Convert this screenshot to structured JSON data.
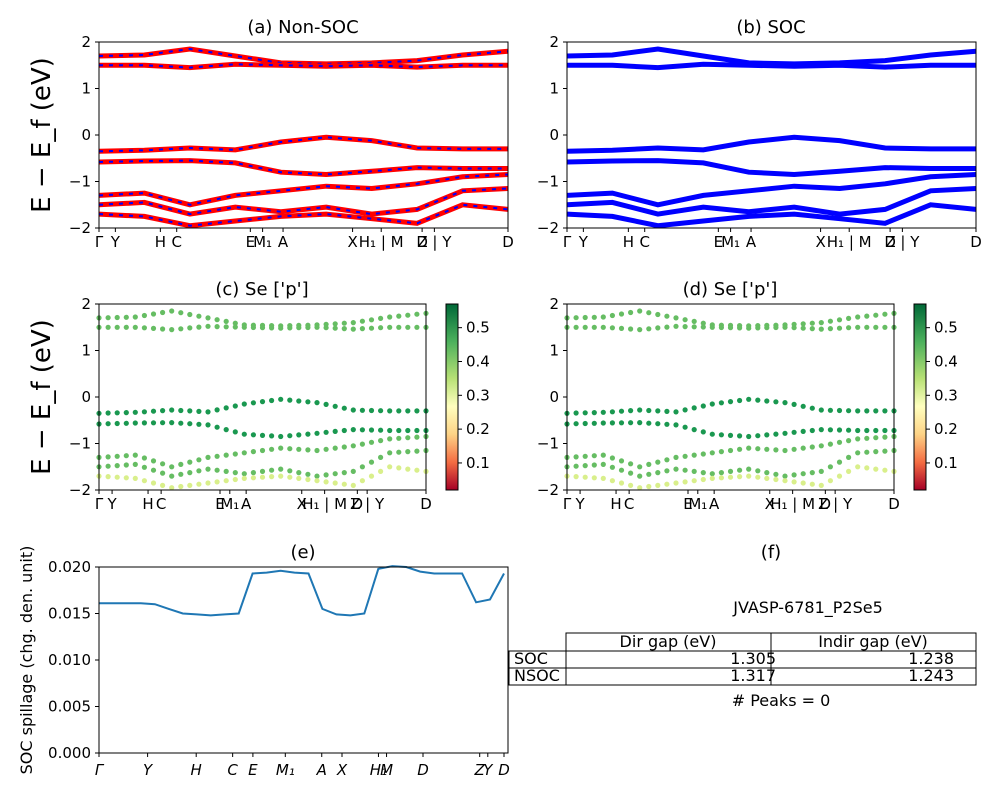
{
  "colors": {
    "nonsoc_red": "#ff0000",
    "blue": "#0000ff",
    "spill_line": "#1f77b4"
  },
  "charts": {
    "a": {
      "title": "(a) Non-SOC",
      "ylabel": "E − E_f (eV)"
    },
    "b": {
      "title": "(b) SOC"
    },
    "c": {
      "title": "(c)  Se ['p']",
      "ylabel": "E − E_f (eV)"
    },
    "d": {
      "title": "(d) Se ['p']"
    },
    "e": {
      "title": "(e)",
      "ylabel": "SOC spillage (chg. den. unit)"
    },
    "f": {
      "title": "(f)",
      "material": "JVASP-6781_P2Se5",
      "peaks": "# Peaks = 0"
    }
  },
  "band_ticks": [
    "Γ",
    "Y",
    "H",
    "C",
    "E",
    "M₁",
    "A",
    "X",
    "H₁ | M",
    "D",
    "Z | Y",
    "D"
  ],
  "spill_ticks": [
    "Γ",
    "Y",
    "H",
    "C",
    "E",
    "M₁",
    "A",
    "X",
    "H₁",
    "M",
    "D",
    "Z",
    "Y",
    "D"
  ],
  "colorbar_ticks": [
    "0.1",
    "0.2",
    "0.3",
    "0.4",
    "0.5"
  ],
  "table": {
    "header": [
      "Dir gap (eV)",
      "Indir gap (eV)"
    ],
    "rows": [
      {
        "label": "SOC",
        "dir": "1.305",
        "indir": "1.238"
      },
      {
        "label": "NSOC",
        "dir": "1.317",
        "indir": "1.243"
      }
    ]
  },
  "chart_data": [
    {
      "type": "line",
      "panel": "a",
      "title": "(a) Non-SOC",
      "ylabel": "E − E_f (eV)",
      "ylim": [
        -2,
        2
      ],
      "yticks": [
        "2",
        "1",
        "0",
        "−1",
        "−2"
      ],
      "series": [
        {
          "name": "",
          "values": [
            1.7,
            1.72,
            1.85,
            1.7,
            1.55,
            1.53,
            1.55,
            1.6,
            1.72,
            1.8
          ]
        },
        {
          "name": "",
          "values": [
            1.5,
            1.5,
            1.45,
            1.52,
            1.5,
            1.48,
            1.5,
            1.46,
            1.5,
            1.5
          ]
        },
        {
          "name": "",
          "values": [
            -0.35,
            -0.33,
            -0.28,
            -0.32,
            -0.15,
            -0.05,
            -0.12,
            -0.28,
            -0.3,
            -0.3
          ]
        },
        {
          "name": "",
          "values": [
            -0.58,
            -0.56,
            -0.55,
            -0.6,
            -0.8,
            -0.85,
            -0.78,
            -0.7,
            -0.72,
            -0.72
          ]
        }
      ]
    },
    {
      "type": "line",
      "panel": "b",
      "title": "(b) SOC",
      "ylim": [
        -2,
        2
      ]
    },
    {
      "type": "scatter",
      "panel": "c",
      "title": "(c)  Se ['p']",
      "ylim": [
        -2,
        2
      ],
      "colorbar": [
        0.02,
        0.57
      ]
    },
    {
      "type": "scatter",
      "panel": "d",
      "title": "(d) Se ['p']",
      "ylim": [
        -2,
        2
      ],
      "colorbar": [
        0.02,
        0.57
      ]
    },
    {
      "type": "line",
      "panel": "e",
      "title": "(e)",
      "ylabel": "SOC spillage (chg. den. unit)",
      "ylim": [
        0,
        0.02
      ],
      "yticks": [
        "0.020",
        "0.015",
        "0.010",
        "0.005",
        "0.000"
      ],
      "x": [
        0,
        1,
        2,
        3,
        4,
        5,
        6,
        7,
        8,
        9,
        10,
        11,
        12,
        13,
        14,
        15,
        16,
        17,
        18,
        19,
        20,
        21,
        22,
        23,
        24,
        25,
        26,
        27,
        28,
        29
      ],
      "values": [
        0.0161,
        0.0161,
        0.0161,
        0.0161,
        0.016,
        0.0155,
        0.015,
        0.0149,
        0.0148,
        0.0149,
        0.015,
        0.0193,
        0.0194,
        0.0196,
        0.0194,
        0.0193,
        0.0155,
        0.0149,
        0.0148,
        0.015,
        0.0198,
        0.0201,
        0.02,
        0.0195,
        0.0193,
        0.0193,
        0.0193,
        0.0162,
        0.0165,
        0.0193
      ]
    }
  ]
}
